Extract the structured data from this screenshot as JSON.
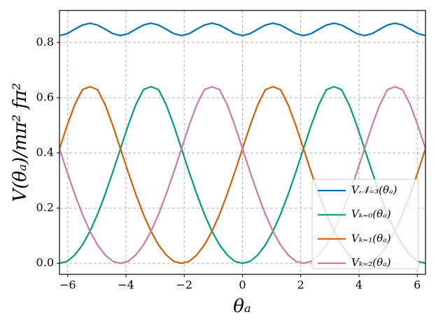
{
  "chart_data": {
    "type": "line",
    "x_label": "θₐ",
    "y_label": "V(θₐ)/mπ² fπ²",
    "x": [
      -6.283,
      -6.021,
      -5.76,
      -5.498,
      -5.236,
      -4.974,
      -4.712,
      -4.451,
      -4.189,
      -3.927,
      -3.665,
      -3.403,
      -3.142,
      -2.88,
      -2.618,
      -2.356,
      -2.094,
      -1.833,
      -1.571,
      -1.309,
      -1.047,
      -0.785,
      -0.524,
      -0.262,
      0,
      0.262,
      0.524,
      0.785,
      1.047,
      1.309,
      1.571,
      1.833,
      2.094,
      2.356,
      2.618,
      2.88,
      3.142,
      3.403,
      3.665,
      3.927,
      4.189,
      4.451,
      4.712,
      4.974,
      5.236,
      5.498,
      5.76,
      6.021,
      6.283
    ],
    "series": [
      {
        "name": "V𝒩₌₃(θₐ)",
        "color": "#0072b2",
        "values": [
          0.825,
          0.832,
          0.848,
          0.863,
          0.87,
          0.863,
          0.848,
          0.832,
          0.825,
          0.832,
          0.848,
          0.863,
          0.87,
          0.863,
          0.848,
          0.832,
          0.825,
          0.832,
          0.848,
          0.863,
          0.87,
          0.863,
          0.848,
          0.832,
          0.825,
          0.832,
          0.848,
          0.863,
          0.87,
          0.863,
          0.848,
          0.832,
          0.825,
          0.832,
          0.848,
          0.863,
          0.87,
          0.863,
          0.848,
          0.832,
          0.825,
          0.832,
          0.848,
          0.863,
          0.87,
          0.863,
          0.848,
          0.832,
          0.825
        ]
      },
      {
        "name": "Vₖ₌₀(θₐ)",
        "color": "#009e73",
        "values": [
          0,
          0.007,
          0.03,
          0.066,
          0.116,
          0.178,
          0.251,
          0.331,
          0.415,
          0.499,
          0.574,
          0.629,
          0.64,
          0.629,
          0.574,
          0.499,
          0.415,
          0.331,
          0.251,
          0.178,
          0.116,
          0.066,
          0.03,
          0.007,
          0,
          0.007,
          0.03,
          0.066,
          0.116,
          0.178,
          0.251,
          0.331,
          0.415,
          0.499,
          0.574,
          0.629,
          0.64,
          0.629,
          0.574,
          0.499,
          0.415,
          0.331,
          0.251,
          0.178,
          0.116,
          0.066,
          0.03,
          0.007,
          0
        ]
      },
      {
        "name": "Vₖ₌₁(θₐ)",
        "color": "#d55e00",
        "values": [
          0.415,
          0.499,
          0.574,
          0.629,
          0.64,
          0.629,
          0.574,
          0.499,
          0.415,
          0.331,
          0.251,
          0.178,
          0.116,
          0.066,
          0.03,
          0.007,
          0,
          0.007,
          0.03,
          0.066,
          0.116,
          0.178,
          0.251,
          0.331,
          0.415,
          0.499,
          0.574,
          0.629,
          0.64,
          0.629,
          0.574,
          0.499,
          0.415,
          0.331,
          0.251,
          0.178,
          0.116,
          0.066,
          0.03,
          0.007,
          0,
          0.007,
          0.03,
          0.066,
          0.116,
          0.178,
          0.251,
          0.331,
          0.415
        ]
      },
      {
        "name": "Vₖ₌₂(θₐ)",
        "color": "#cc79a7",
        "values": [
          0.415,
          0.331,
          0.251,
          0.178,
          0.116,
          0.066,
          0.03,
          0.007,
          0,
          0.007,
          0.03,
          0.066,
          0.116,
          0.178,
          0.251,
          0.331,
          0.415,
          0.499,
          0.574,
          0.629,
          0.64,
          0.629,
          0.574,
          0.499,
          0.415,
          0.331,
          0.251,
          0.178,
          0.116,
          0.066,
          0.03,
          0.007,
          0,
          0.007,
          0.03,
          0.066,
          0.116,
          0.178,
          0.251,
          0.331,
          0.415,
          0.499,
          0.574,
          0.629,
          0.64,
          0.629,
          0.574,
          0.499,
          0.415
        ]
      }
    ],
    "xlim": [
      -6.283,
      6.283
    ],
    "ylim": [
      -0.04,
      0.916
    ],
    "xticks": [
      {
        "value": -6,
        "label": "−6"
      },
      {
        "value": -4,
        "label": "−4"
      },
      {
        "value": -2,
        "label": "−2"
      },
      0,
      2,
      4,
      6
    ],
    "yticks": [
      {
        "value": 0,
        "label": "0.0"
      },
      0.2,
      0.4,
      0.6,
      0.8
    ],
    "grid": true,
    "legend": "lower right"
  }
}
